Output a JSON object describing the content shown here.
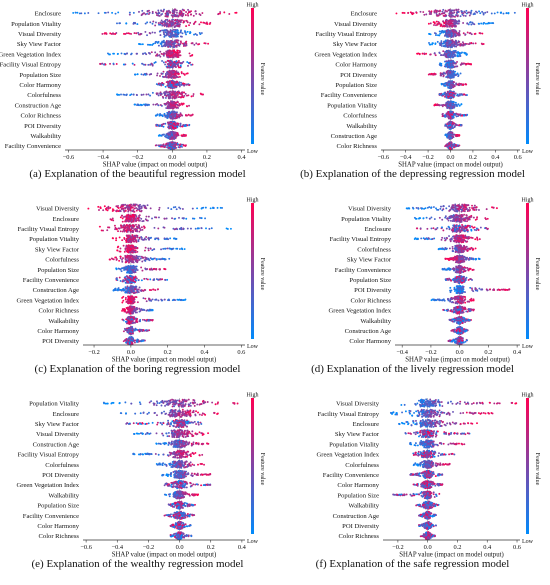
{
  "colors": {
    "high": "#ff0052",
    "low": "#008bfb",
    "axis": "#333333",
    "zero": "#999999"
  },
  "colorbar": {
    "high_label": "High",
    "low_label": "Low",
    "title": "Feature value"
  },
  "panels": [
    {
      "caption": "(a)  Explanation of the beautiful regression model",
      "chart_data": {
        "type": "scatter",
        "subtype": "shap_beeswarm",
        "xlabel": "SHAP value (impact on model output)",
        "xlim": [
          -0.62,
          0.42
        ],
        "xticks": [
          -0.6,
          -0.4,
          -0.2,
          0.0,
          0.2,
          0.4
        ],
        "xtick_labels": [
          "−0.6",
          "−0.4",
          "−0.2",
          "0.0",
          "0.2",
          "0.4"
        ],
        "features": [
          "Enclosure",
          "Population Vitality",
          "Visual Diversity",
          "Sky View Factor",
          "Green Vegetation Index",
          "Facility Visual Entropy",
          "Population Size",
          "Color Harmony",
          "Colorfulness",
          "Construction Age",
          "Color Richness",
          "POI Diversity",
          "Walkability",
          "Facility Convenience"
        ],
        "spread": [
          [
            -0.58,
            0.4
          ],
          [
            -0.32,
            0.22
          ],
          [
            -0.42,
            0.18
          ],
          [
            -0.2,
            0.22
          ],
          [
            -0.38,
            0.12
          ],
          [
            -0.42,
            0.12
          ],
          [
            -0.22,
            0.1
          ],
          [
            -0.1,
            0.12
          ],
          [
            -0.32,
            0.2
          ],
          [
            -0.22,
            0.1
          ],
          [
            -0.1,
            0.12
          ],
          [
            -0.1,
            0.1
          ],
          [
            -0.08,
            0.08
          ],
          [
            -0.1,
            0.08
          ]
        ],
        "high_side": [
          1,
          1,
          -1,
          1,
          1,
          0,
          1,
          0,
          1,
          1,
          1,
          0,
          1,
          0
        ]
      }
    },
    {
      "caption": "(b)  Explanation of the depressing regression model",
      "chart_data": {
        "type": "scatter",
        "subtype": "shap_beeswarm",
        "xlabel": "SHAP value (impact on model output)",
        "xlim": [
          -0.62,
          0.62
        ],
        "xticks": [
          -0.6,
          -0.4,
          -0.2,
          0.0,
          0.2,
          0.4,
          0.6
        ],
        "xtick_labels": [
          "−0.6",
          "−0.4",
          "−0.2",
          "0.0",
          "0.2",
          "0.4",
          "0.6"
        ],
        "features": [
          "Enclosure",
          "Visual Diversity",
          "Facility Visual Entropy",
          "Sky View Factor",
          "Green Vegetation Index",
          "Color Harmony",
          "POI Diversity",
          "Population Size",
          "Facility Convenience",
          "Population Vitality",
          "Colorfulness",
          "Walkability",
          "Construction Age",
          "Color Richness"
        ],
        "spread": [
          [
            -0.5,
            0.58
          ],
          [
            -0.2,
            0.4
          ],
          [
            -0.2,
            0.3
          ],
          [
            -0.2,
            0.3
          ],
          [
            -0.3,
            0.15
          ],
          [
            -0.1,
            0.2
          ],
          [
            -0.2,
            0.1
          ],
          [
            -0.08,
            0.15
          ],
          [
            -0.1,
            0.15
          ],
          [
            -0.15,
            0.1
          ],
          [
            -0.08,
            0.15
          ],
          [
            -0.05,
            0.1
          ],
          [
            -0.05,
            0.08
          ],
          [
            -0.05,
            0.08
          ]
        ],
        "high_side": [
          -1,
          -1,
          1,
          1,
          -1,
          1,
          -1,
          1,
          0,
          -1,
          0,
          0,
          1,
          0
        ]
      }
    },
    {
      "caption": "(c)  Explanation of the boring regression model",
      "chart_data": {
        "type": "scatter",
        "subtype": "shap_beeswarm",
        "xlabel": "SHAP value (impact on model output)",
        "xlim": [
          -0.26,
          0.62
        ],
        "xticks": [
          -0.2,
          0.0,
          0.2,
          0.4,
          0.6
        ],
        "xtick_labels": [
          "−0.2",
          "0.0",
          "0.2",
          "0.4",
          "0.6"
        ],
        "features": [
          "Visual Diversity",
          "Enclosure",
          "Facility Visual Entropy",
          "Population Vitality",
          "Sky View Factor",
          "Colorfulness",
          "Population Size",
          "Facility Convenience",
          "Construction Age",
          "Green Vegetation Index",
          "Color Richness",
          "Walkability",
          "Color Harmony",
          "POI Diversity"
        ],
        "spread": [
          [
            -0.24,
            0.52
          ],
          [
            -0.12,
            0.42
          ],
          [
            -0.18,
            0.55
          ],
          [
            -0.1,
            0.25
          ],
          [
            -0.08,
            0.3
          ],
          [
            -0.12,
            0.22
          ],
          [
            -0.08,
            0.2
          ],
          [
            -0.08,
            0.2
          ],
          [
            -0.1,
            0.15
          ],
          [
            -0.06,
            0.3
          ],
          [
            -0.05,
            0.12
          ],
          [
            -0.05,
            0.12
          ],
          [
            -0.04,
            0.1
          ],
          [
            -0.04,
            0.08
          ]
        ],
        "high_side": [
          -1,
          -1,
          -1,
          -1,
          -1,
          -1,
          1,
          0,
          1,
          -1,
          -1,
          0,
          0,
          0
        ]
      }
    },
    {
      "caption": "(d)  Explanation of the lively regression model",
      "chart_data": {
        "type": "scatter",
        "subtype": "shap_beeswarm",
        "xlabel": "SHAP value (impact on model output)",
        "xlim": [
          -0.45,
          0.42
        ],
        "xticks": [
          -0.4,
          -0.2,
          0.0,
          0.2,
          0.4
        ],
        "xtick_labels": [
          "−0.4",
          "−0.2",
          "0.0",
          "0.2",
          "0.4"
        ],
        "features": [
          "Visual Diversity",
          "Population Vitality",
          "Enclosure",
          "Facility Visual Entropy",
          "Colorfulness",
          "Sky View Factor",
          "Facility Convenience",
          "Population Size",
          "POI Diversity",
          "Color Richness",
          "Green Vegetation Index",
          "Walkability",
          "Construction Age",
          "Color Harmony"
        ],
        "spread": [
          [
            -0.38,
            0.28
          ],
          [
            -0.32,
            0.2
          ],
          [
            -0.3,
            0.2
          ],
          [
            -0.32,
            0.15
          ],
          [
            -0.15,
            0.12
          ],
          [
            -0.1,
            0.15
          ],
          [
            -0.12,
            0.1
          ],
          [
            -0.1,
            0.1
          ],
          [
            -0.08,
            0.35
          ],
          [
            -0.2,
            0.1
          ],
          [
            -0.12,
            0.1
          ],
          [
            -0.08,
            0.08
          ],
          [
            -0.06,
            0.06
          ],
          [
            -0.08,
            0.06
          ]
        ],
        "high_side": [
          1,
          1,
          0,
          1,
          1,
          -1,
          1,
          0,
          1,
          1,
          0,
          0,
          0,
          0
        ]
      }
    },
    {
      "caption": "(e)  Explanation of the wealthy regression model",
      "chart_data": {
        "type": "scatter",
        "subtype": "shap_beeswarm",
        "xlabel": "SHAP value (impact on model output)",
        "xlim": [
          -0.62,
          0.42
        ],
        "xticks": [
          -0.6,
          -0.4,
          -0.2,
          0.0,
          0.2,
          0.4
        ],
        "xtick_labels": [
          "−0.6",
          "−0.4",
          "−0.2",
          "0.0",
          "0.2",
          "0.4"
        ],
        "features": [
          "Population Vitality",
          "Enclosure",
          "Sky View Factor",
          "Visual Diversity",
          "Construction Age",
          "Facility Visual Entropy",
          "Colorfulness",
          "POI Diversity",
          "Green Vegetation Index",
          "Walkability",
          "Population Size",
          "Facility Convenience",
          "Color Harmony",
          "Color Richness"
        ],
        "spread": [
          [
            -0.5,
            0.38
          ],
          [
            -0.38,
            0.25
          ],
          [
            -0.35,
            0.15
          ],
          [
            -0.3,
            0.2
          ],
          [
            -0.15,
            0.2
          ],
          [
            -0.3,
            0.15
          ],
          [
            -0.15,
            0.18
          ],
          [
            -0.12,
            0.2
          ],
          [
            -0.1,
            0.2
          ],
          [
            -0.1,
            0.12
          ],
          [
            -0.08,
            0.1
          ],
          [
            -0.1,
            0.1
          ],
          [
            -0.06,
            0.08
          ],
          [
            -0.06,
            0.08
          ]
        ],
        "high_side": [
          1,
          1,
          0,
          1,
          1,
          1,
          1,
          1,
          0,
          1,
          0,
          0,
          0,
          0
        ]
      }
    },
    {
      "caption": "(f)  Explanation of the safe regression model",
      "chart_data": {
        "type": "scatter",
        "subtype": "shap_beeswarm",
        "xlabel": "SHAP value (impact on model output)",
        "xlim": [
          -0.3,
          0.62
        ],
        "xticks": [
          -0.2,
          0.0,
          0.2,
          0.4,
          0.6
        ],
        "xtick_labels": [
          "−0.2",
          "0.0",
          "0.2",
          "0.4",
          "0.6"
        ],
        "features": [
          "Visual Diversity",
          "Facility Visual Entropy",
          "Enclosure",
          "Sky View Factor",
          "Population Vitality",
          "Green Vegetation Index",
          "Colorfulness",
          "Facility Convenience",
          "Color Harmony",
          "Population Size",
          "Walkability",
          "Construction Age",
          "POI Diversity",
          "Color Richness"
        ],
        "spread": [
          [
            -0.2,
            0.6
          ],
          [
            -0.25,
            0.45
          ],
          [
            -0.2,
            0.35
          ],
          [
            -0.15,
            0.3
          ],
          [
            -0.12,
            0.25
          ],
          [
            -0.1,
            0.2
          ],
          [
            -0.1,
            0.15
          ],
          [
            -0.12,
            0.1
          ],
          [
            -0.1,
            0.1
          ],
          [
            -0.25,
            0.08
          ],
          [
            -0.08,
            0.08
          ],
          [
            -0.06,
            0.06
          ],
          [
            -0.06,
            0.06
          ],
          [
            -0.05,
            0.05
          ]
        ],
        "high_side": [
          1,
          1,
          1,
          0,
          1,
          0,
          1,
          0,
          0,
          0,
          0,
          0,
          0,
          0
        ]
      }
    }
  ]
}
